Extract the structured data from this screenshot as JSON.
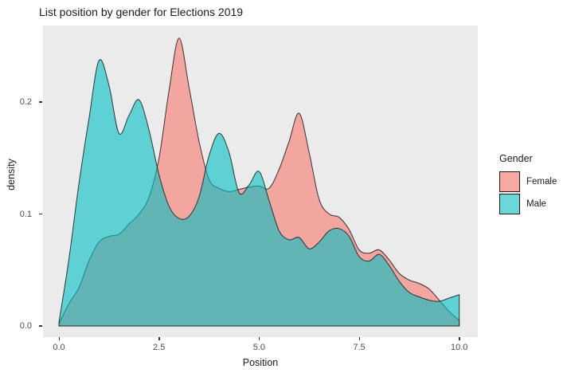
{
  "title": "List position by gender for Elections 2019",
  "colors": {
    "panel_bg": "#EBEBEB",
    "female_fill": "#F8766D",
    "male_fill": "#00BFC4",
    "fill_opacity": 0.6,
    "stroke": "#222222",
    "tick_text": "#4D4D4D",
    "legend_female_key": "#F6A8A2",
    "legend_male_key": "#6CD6D9"
  },
  "x_axis": {
    "label": "Position",
    "tick_labels": [
      "0.0",
      "2.5",
      "5.0",
      "7.5",
      "10.0"
    ],
    "tick_values": [
      0,
      2.5,
      5,
      7.5,
      10
    ]
  },
  "y_axis": {
    "label": "density",
    "tick_labels": [
      "0.0",
      "0.1",
      "0.2"
    ],
    "tick_values": [
      0,
      0.1,
      0.2
    ]
  },
  "legend": {
    "title": "Gender",
    "items": [
      {
        "label": "Female",
        "key_color": "#F6A8A2"
      },
      {
        "label": "Male",
        "key_color": "#6CD6D9"
      }
    ]
  },
  "chart_data": {
    "type": "area",
    "subtype": "overlapping-density",
    "title": "List position by gender for Elections 2019",
    "xlabel": "Position",
    "ylabel": "density",
    "xlim": [
      0,
      10
    ],
    "ylim": [
      0,
      0.268
    ],
    "x_ticks": [
      0,
      2.5,
      5,
      7.5,
      10
    ],
    "y_ticks": [
      0,
      0.1,
      0.2
    ],
    "grid": false,
    "legend_title": "Gender",
    "legend_position": "right",
    "x": [
      0,
      0.25,
      0.5,
      0.75,
      1,
      1.25,
      1.5,
      1.75,
      2,
      2.25,
      2.5,
      2.75,
      3,
      3.25,
      3.5,
      3.75,
      4,
      4.25,
      4.5,
      4.75,
      5,
      5.25,
      5.5,
      5.75,
      6,
      6.25,
      6.5,
      6.75,
      7,
      7.25,
      7.5,
      7.75,
      8,
      8.25,
      8.5,
      8.75,
      9,
      9.25,
      9.5,
      9.75,
      10
    ],
    "series": [
      {
        "name": "Female",
        "fill": "#F8766D",
        "values": [
          0.002,
          0.02,
          0.034,
          0.058,
          0.075,
          0.08,
          0.082,
          0.091,
          0.1,
          0.115,
          0.15,
          0.21,
          0.257,
          0.213,
          0.165,
          0.131,
          0.123,
          0.12,
          0.122,
          0.124,
          0.125,
          0.123,
          0.14,
          0.165,
          0.19,
          0.155,
          0.113,
          0.1,
          0.097,
          0.086,
          0.068,
          0.065,
          0.068,
          0.059,
          0.047,
          0.041,
          0.038,
          0.033,
          0.023,
          0.013,
          0.005
        ]
      },
      {
        "name": "Male",
        "fill": "#00BFC4",
        "values": [
          0.003,
          0.06,
          0.127,
          0.185,
          0.237,
          0.215,
          0.172,
          0.188,
          0.202,
          0.175,
          0.135,
          0.107,
          0.096,
          0.098,
          0.115,
          0.152,
          0.172,
          0.155,
          0.119,
          0.126,
          0.138,
          0.112,
          0.085,
          0.077,
          0.079,
          0.069,
          0.075,
          0.085,
          0.087,
          0.08,
          0.062,
          0.058,
          0.064,
          0.054,
          0.04,
          0.03,
          0.026,
          0.023,
          0.022,
          0.025,
          0.028
        ]
      }
    ]
  }
}
